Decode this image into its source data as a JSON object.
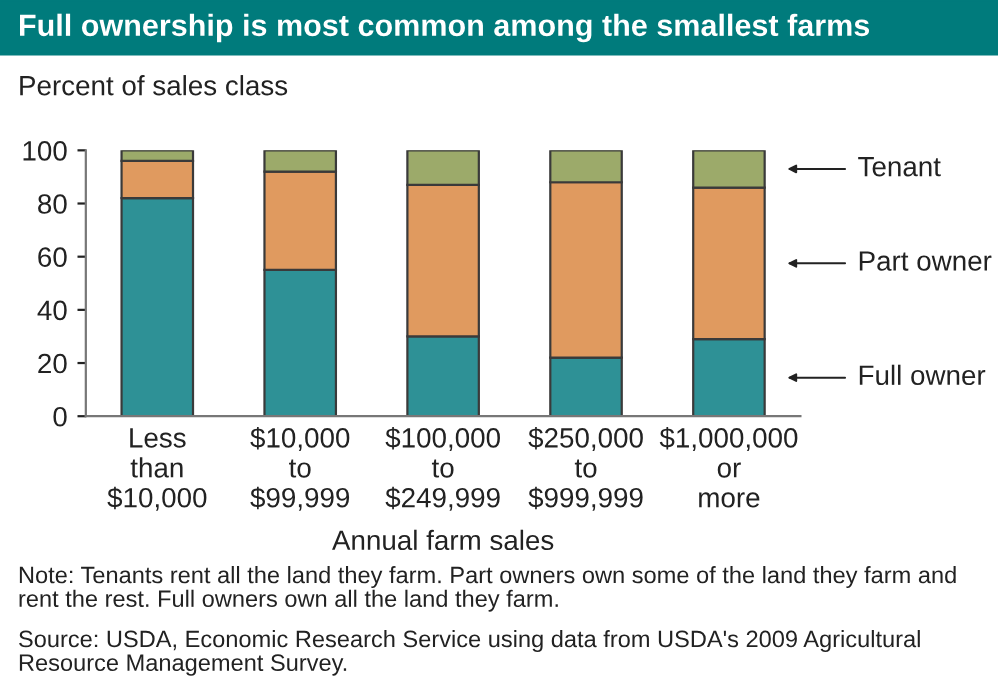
{
  "chart_data": {
    "type": "bar",
    "title": "Full ownership is most common among the smallest farms",
    "ylabel": "Percent of sales class",
    "xlabel": "Annual farm sales",
    "categories": [
      "Less\nthan\n$10,000",
      "$10,000\nto\n$99,999",
      "$100,000\nto\n$249,999",
      "$250,000\nto\n$999,999",
      "$1,000,000\nor\nmore"
    ],
    "stacked": true,
    "series": [
      {
        "name": "Full owner",
        "color": "#2e9196",
        "values": [
          82,
          55,
          30,
          22,
          29
        ]
      },
      {
        "name": "Part owner",
        "color": "#e09a5f",
        "values": [
          14,
          37,
          57,
          66,
          57
        ]
      },
      {
        "name": "Tenant",
        "color": "#9caa6a",
        "values": [
          4,
          8,
          13,
          12,
          14
        ]
      }
    ],
    "ylim": [
      0,
      100
    ],
    "yticks": [
      0,
      20,
      40,
      60,
      80,
      100
    ],
    "grid": false,
    "legend": false,
    "annotations": [
      "Note: Tenants rent all the land they farm. Part owners own some of the land they farm and rent the rest. Full owners own all the land they farm.",
      "Source: USDA, Economic Research Service using data from USDA's 2009 Agricultural Resource Management Survey."
    ]
  }
}
